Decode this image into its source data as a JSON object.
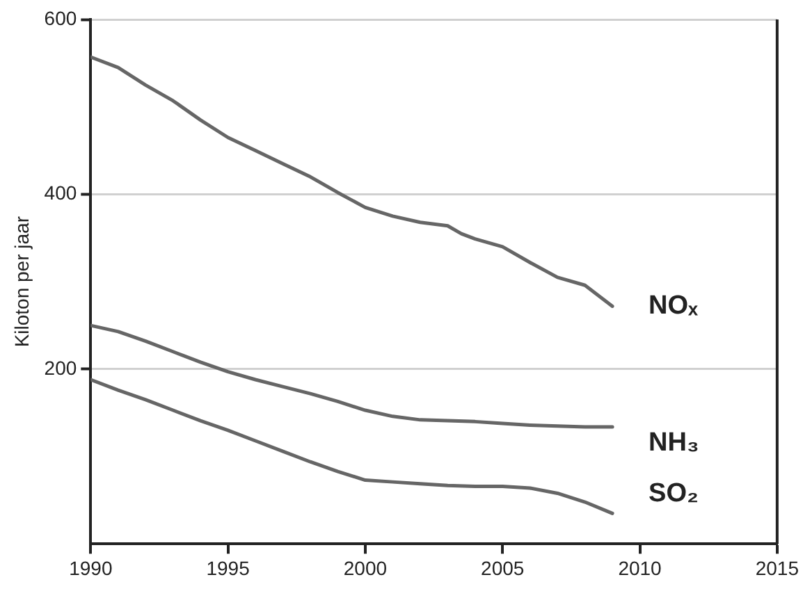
{
  "chart_data": {
    "type": "line",
    "ylabel": "Kiloton per jaar",
    "x": [
      1990,
      1991,
      1992,
      1993,
      1994,
      1995,
      1996,
      1997,
      1998,
      1999,
      2000,
      2001,
      2002,
      2003,
      2004,
      2005,
      2006,
      2007,
      2008,
      2009
    ],
    "series": [
      {
        "name": "NOₓ",
        "color": "#666666",
        "x": [
          1990,
          1991,
          1992,
          1993,
          1994,
          1995,
          1996,
          1997,
          1998,
          1999,
          2000,
          2001,
          2002,
          2002.5,
          2003,
          2003.5,
          2004,
          2005,
          2006,
          2007,
          2008,
          2009
        ],
        "values": [
          557,
          545,
          525,
          507,
          485,
          465,
          450,
          435,
          420,
          402,
          385,
          375,
          368,
          366,
          364,
          355,
          349,
          340,
          322,
          305,
          296,
          272
        ]
      },
      {
        "name": "NH₃",
        "color": "#666666",
        "values": [
          250,
          243,
          232,
          220,
          208,
          197,
          188,
          180,
          172,
          163,
          153,
          146,
          142,
          141,
          140,
          138,
          136,
          135,
          134,
          134
        ]
      },
      {
        "name": "SO₂",
        "color": "#666666",
        "values": [
          188,
          176,
          165,
          153,
          141,
          130,
          118,
          106,
          94,
          83,
          73,
          71,
          69,
          67,
          66,
          66,
          64,
          58,
          48,
          35
        ]
      }
    ],
    "xlim": [
      1990,
      2015
    ],
    "xticks": [
      1990,
      1995,
      2000,
      2005,
      2010,
      2015
    ],
    "ylim": [
      0,
      600
    ],
    "yticks": [
      200,
      400,
      600
    ],
    "grid": "y",
    "legend": false,
    "marker": "none",
    "line_style": "solid"
  }
}
